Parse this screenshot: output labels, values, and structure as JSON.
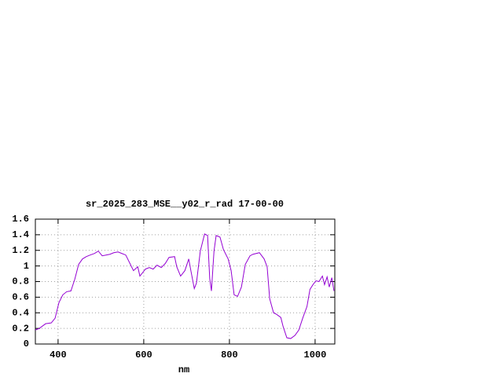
{
  "chart_data": {
    "type": "line",
    "title": "sr_2025_283_MSE__y02_r_rad 17-00-00",
    "x_label": "nm",
    "x": [
      347,
      356,
      371,
      384,
      393,
      402,
      411,
      420,
      430,
      439,
      448,
      457,
      466,
      475,
      485,
      494,
      503,
      521,
      530,
      540,
      549,
      558,
      567,
      576,
      586,
      591,
      604,
      613,
      622,
      631,
      641,
      650,
      659,
      672,
      677,
      686,
      696,
      705,
      710,
      718,
      723,
      732,
      742,
      749,
      754,
      758,
      764,
      769,
      778,
      786,
      797,
      804,
      811,
      819,
      828,
      837,
      848,
      855,
      870,
      881,
      888,
      894,
      903,
      910,
      920,
      925,
      934,
      943,
      953,
      962,
      971,
      981,
      988,
      995,
      1002,
      1009,
      1017,
      1022,
      1028,
      1033,
      1039,
      1044
    ],
    "series": [
      {
        "name": "sr_2025_283_MSE__y02_r_rad",
        "color": "#9400d3",
        "values": [
          0.18,
          0.2,
          0.26,
          0.27,
          0.33,
          0.53,
          0.63,
          0.67,
          0.68,
          0.83,
          1.02,
          1.09,
          1.12,
          1.14,
          1.16,
          1.19,
          1.13,
          1.15,
          1.17,
          1.18,
          1.16,
          1.14,
          1.04,
          0.94,
          0.99,
          0.87,
          0.96,
          0.98,
          0.96,
          1.01,
          0.98,
          1.03,
          1.11,
          1.12,
          0.99,
          0.87,
          0.94,
          1.09,
          0.94,
          0.71,
          0.78,
          1.19,
          1.41,
          1.39,
          0.84,
          0.68,
          1.19,
          1.39,
          1.37,
          1.21,
          1.09,
          0.94,
          0.63,
          0.61,
          0.73,
          1.02,
          1.13,
          1.15,
          1.17,
          1.09,
          0.99,
          0.58,
          0.4,
          0.38,
          0.34,
          0.23,
          0.08,
          0.07,
          0.11,
          0.18,
          0.33,
          0.48,
          0.7,
          0.76,
          0.81,
          0.8,
          0.87,
          0.76,
          0.86,
          0.73,
          0.85,
          0.68
        ]
      }
    ],
    "xlim": [
      347,
      1046
    ],
    "xticks": [
      400,
      600,
      800,
      1000
    ],
    "ylim": [
      0,
      1.6
    ],
    "yticks": [
      0,
      0.2,
      0.4,
      0.6,
      0.8,
      1,
      1.2,
      1.4,
      1.6
    ],
    "grid": true
  }
}
